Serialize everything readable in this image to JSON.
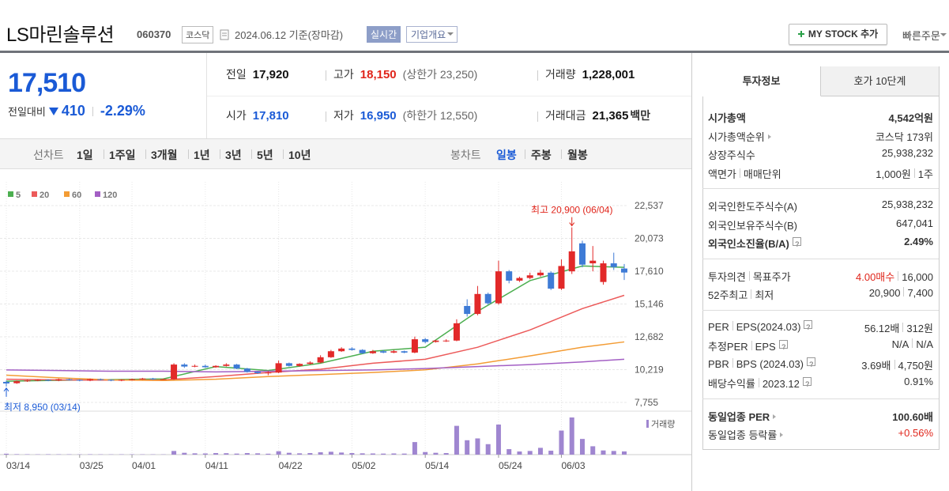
{
  "header": {
    "title": "LS마린솔루션",
    "code": "060370",
    "market": "코스닥",
    "date": "2024.06.12 기준(장마감)",
    "realtime": "실시간",
    "overview": "기업개요",
    "mystock": "MY STOCK 추가",
    "quick_order": "빠른주문"
  },
  "quote": {
    "price": "17,510",
    "change_label": "전일대비",
    "change": "410",
    "change_pct": "-2.29%",
    "rows": [
      [
        {
          "label": "전일",
          "value": "17,920"
        },
        {
          "label": "고가",
          "value": "18,150",
          "note": "(상한가 23,250)",
          "color": "#e0251b"
        },
        {
          "label": "거래량",
          "value": "1,228,001"
        }
      ],
      [
        {
          "label": "시가",
          "value": "17,810",
          "color": "#1a5ad6"
        },
        {
          "label": "저가",
          "value": "16,950",
          "note": "(하한가 12,550)",
          "color": "#1a5ad6"
        },
        {
          "label": "거래대금",
          "value": "21,365",
          "unit": "백만"
        }
      ]
    ]
  },
  "period_bar": {
    "line_label": "선차트",
    "line_periods": [
      "1일",
      "1주일",
      "3개월",
      "1년",
      "3년",
      "5년",
      "10년"
    ],
    "candle_label": "봉차트",
    "candle_periods": [
      "일봉",
      "주봉",
      "월봉"
    ],
    "selected_candle": 0
  },
  "chart_data": {
    "type": "candlestick",
    "categories": [
      "03/14",
      null,
      null,
      null,
      null,
      null,
      null,
      "03/25",
      null,
      null,
      null,
      null,
      "04/01",
      null,
      null,
      null,
      null,
      null,
      null,
      "04/11",
      null,
      null,
      null,
      null,
      null,
      null,
      "04/22",
      null,
      null,
      null,
      null,
      null,
      null,
      "05/02",
      null,
      null,
      null,
      null,
      null,
      null,
      "05/14",
      null,
      null,
      null,
      null,
      null,
      null,
      "05/24",
      null,
      null,
      null,
      null,
      null,
      "06/03",
      null,
      null,
      null,
      null,
      null,
      null
    ],
    "open": [
      9300,
      9200,
      9350,
      9400,
      9450,
      9400,
      9500,
      9450,
      9400,
      9500,
      9450,
      9400,
      9450,
      9500,
      9550,
      9500,
      9500,
      10600,
      10450,
      10500,
      10400,
      10500,
      10600,
      10300,
      10050,
      9950,
      10000,
      10700,
      10500,
      10650,
      10750,
      11150,
      11600,
      11800,
      11700,
      11450,
      11600,
      11500,
      11600,
      11500,
      12500,
      12300,
      12400,
      12400,
      15000,
      14400,
      15900,
      15200,
      17600,
      16900,
      17100,
      17300,
      17500,
      16300,
      17600,
      19700,
      18200,
      16800,
      18200,
      17810
    ],
    "high": [
      9400,
      9400,
      9450,
      9500,
      9500,
      9550,
      9550,
      9500,
      9550,
      9550,
      9500,
      9500,
      9550,
      9600,
      9600,
      9550,
      10700,
      10700,
      10600,
      10600,
      10550,
      10700,
      10650,
      10350,
      10100,
      10100,
      10900,
      10750,
      10700,
      10850,
      11300,
      11700,
      11900,
      11900,
      11750,
      11700,
      11700,
      11700,
      11650,
      12700,
      12600,
      12450,
      12500,
      14000,
      15500,
      16500,
      16000,
      18400,
      17700,
      17200,
      17500,
      17700,
      17600,
      18500,
      20900,
      19900,
      19500,
      18400,
      19000,
      18150
    ],
    "low": [
      8950,
      9150,
      9300,
      9350,
      9350,
      9350,
      9400,
      9350,
      9350,
      9400,
      9350,
      9350,
      9400,
      9450,
      9450,
      9450,
      9450,
      10350,
      10400,
      10350,
      10350,
      10450,
      10250,
      10000,
      9900,
      9800,
      9950,
      10450,
      10450,
      10600,
      10700,
      11100,
      11550,
      11650,
      11400,
      11400,
      11450,
      11450,
      11450,
      11450,
      12200,
      12250,
      12300,
      12350,
      14200,
      14300,
      15100,
      15100,
      16700,
      16800,
      17000,
      17200,
      16200,
      16200,
      17400,
      17900,
      17600,
      16600,
      17700,
      16950
    ],
    "close": [
      9180,
      9350,
      9400,
      9450,
      9400,
      9500,
      9450,
      9400,
      9500,
      9450,
      9400,
      9450,
      9500,
      9550,
      9500,
      9500,
      10600,
      10450,
      10500,
      10400,
      10500,
      10600,
      10300,
      10050,
      9950,
      10000,
      10700,
      10500,
      10650,
      10750,
      11150,
      11600,
      11800,
      11700,
      11450,
      11600,
      11500,
      11600,
      11500,
      12500,
      12300,
      12400,
      12400,
      13700,
      14400,
      15900,
      15200,
      17600,
      16900,
      17100,
      17300,
      17500,
      16300,
      18000,
      19100,
      18100,
      18400,
      18200,
      17920,
      17510
    ],
    "volume": [
      350000,
      180000,
      150000,
      120000,
      160000,
      140000,
      130000,
      110000,
      150000,
      120000,
      100000,
      130000,
      140000,
      120000,
      110000,
      100000,
      1400000,
      700000,
      500000,
      450000,
      600000,
      550000,
      400000,
      600000,
      500000,
      350000,
      1300000,
      700000,
      500000,
      600000,
      900000,
      1100000,
      800000,
      600000,
      500000,
      450000,
      400000,
      450000,
      400000,
      4800000,
      1000000,
      700000,
      600000,
      11000000,
      5500000,
      6200000,
      4000000,
      11500000,
      2100000,
      1200000,
      1400000,
      2600000,
      1500000,
      9200000,
      14200000,
      6000000,
      3200000,
      1600000,
      1400000,
      1228001
    ],
    "up_color": "#e22929",
    "down_color": "#3e7bd6",
    "volume_color": "#9f86d0",
    "volume_label": "거래량",
    "moving_averages": [
      {
        "name": "5",
        "color": "#4caf50",
        "x": [
          0,
          5,
          10,
          15,
          20,
          25,
          30,
          35,
          40,
          45,
          50,
          55,
          59
        ],
        "values": [
          9350,
          9420,
          9470,
          9520,
          10450,
          10150,
          10700,
          11600,
          11900,
          14600,
          16900,
          18000,
          17900
        ]
      },
      {
        "name": "20",
        "color": "#ec5a5a",
        "x": [
          0,
          5,
          10,
          15,
          20,
          25,
          30,
          35,
          40,
          45,
          50,
          55,
          59
        ],
        "values": [
          9500,
          9450,
          9430,
          9450,
          9700,
          10000,
          10250,
          10700,
          11000,
          11900,
          13200,
          14800,
          15800
        ]
      },
      {
        "name": "60",
        "color": "#f39c34",
        "x": [
          0,
          5,
          10,
          15,
          20,
          25,
          30,
          35,
          40,
          45,
          50,
          55,
          59
        ],
        "values": [
          9800,
          9600,
          9450,
          9400,
          9500,
          9700,
          9850,
          10000,
          10200,
          10650,
          11250,
          11900,
          12300
        ]
      },
      {
        "name": "120",
        "color": "#a35fc4",
        "x": [
          0,
          5,
          10,
          15,
          20,
          25,
          30,
          35,
          40,
          45,
          50,
          55,
          59
        ],
        "values": [
          10200,
          10150,
          10100,
          10100,
          10050,
          10100,
          10150,
          10200,
          10300,
          10450,
          10600,
          10800,
          11000
        ]
      }
    ],
    "max_label": "최고 20,900 (06/04)",
    "min_label": "최저 8,950 (03/14)",
    "max_color": "#e0251b",
    "min_color": "#1a5ad6",
    "ylim": [
      7755,
      22537
    ],
    "yticks": [
      {
        "value": 7755,
        "label": "7,755"
      },
      {
        "value": 10219,
        "label": "10,219"
      },
      {
        "value": 12682,
        "label": "12,682"
      },
      {
        "value": 15146,
        "label": "15,146"
      },
      {
        "value": 17610,
        "label": "17,610"
      },
      {
        "value": 20073,
        "label": "20,073"
      },
      {
        "value": 22537,
        "label": "22,537"
      }
    ],
    "grid": true
  },
  "info": {
    "tabs": [
      "투자정보",
      "호가 10단계"
    ],
    "active_tab": 0,
    "highlight_color": "#e0251b",
    "sections": [
      [
        {
          "label": [
            "시가총액"
          ],
          "value": [
            "4,542억원"
          ],
          "bold": true
        },
        {
          "label": [
            "시가총액순위"
          ],
          "arrow": true,
          "value": [
            "코스닥 173위"
          ]
        },
        {
          "label": [
            "상장주식수"
          ],
          "value": [
            "25,938,232"
          ]
        },
        {
          "label": [
            "액면가",
            "매매단위"
          ],
          "value": [
            "1,000원",
            "1주"
          ]
        }
      ],
      [
        {
          "label": [
            "외국인한도주식수(A)"
          ],
          "value": [
            "25,938,232"
          ]
        },
        {
          "label": [
            "외국인보유주식수(B)"
          ],
          "value": [
            "647,041"
          ]
        },
        {
          "label": [
            "외국인소진율(B/A)"
          ],
          "help": true,
          "value": [
            "2.49%"
          ],
          "bold": true
        }
      ],
      [
        {
          "label": [
            "투자의견",
            "목표주가"
          ],
          "value": [
            "4.00매수",
            "16,000"
          ],
          "highlight": 0
        },
        {
          "label": [
            "52주최고",
            "최저"
          ],
          "value": [
            "20,900",
            "7,400"
          ]
        }
      ],
      [
        {
          "label": [
            "PER",
            "EPS(2024.03)"
          ],
          "help": true,
          "value": [
            "56.12배",
            "312원"
          ]
        },
        {
          "label": [
            "추정PER",
            "EPS"
          ],
          "help": true,
          "value": [
            "N/A",
            "N/A"
          ]
        },
        {
          "label": [
            "PBR",
            "BPS (2024.03)"
          ],
          "help": true,
          "value": [
            "3.69배",
            "4,750원"
          ]
        },
        {
          "label": [
            "배당수익률",
            "2023.12"
          ],
          "help": true,
          "value": [
            "0.91%"
          ]
        }
      ],
      [
        {
          "label": [
            "동일업종 PER"
          ],
          "arrow": true,
          "bold": true,
          "value": [
            "100.60배"
          ]
        },
        {
          "label": [
            "동일업종 등락률"
          ],
          "arrow": true,
          "value": [
            "+0.56%"
          ],
          "highlight": 0
        }
      ]
    ]
  }
}
